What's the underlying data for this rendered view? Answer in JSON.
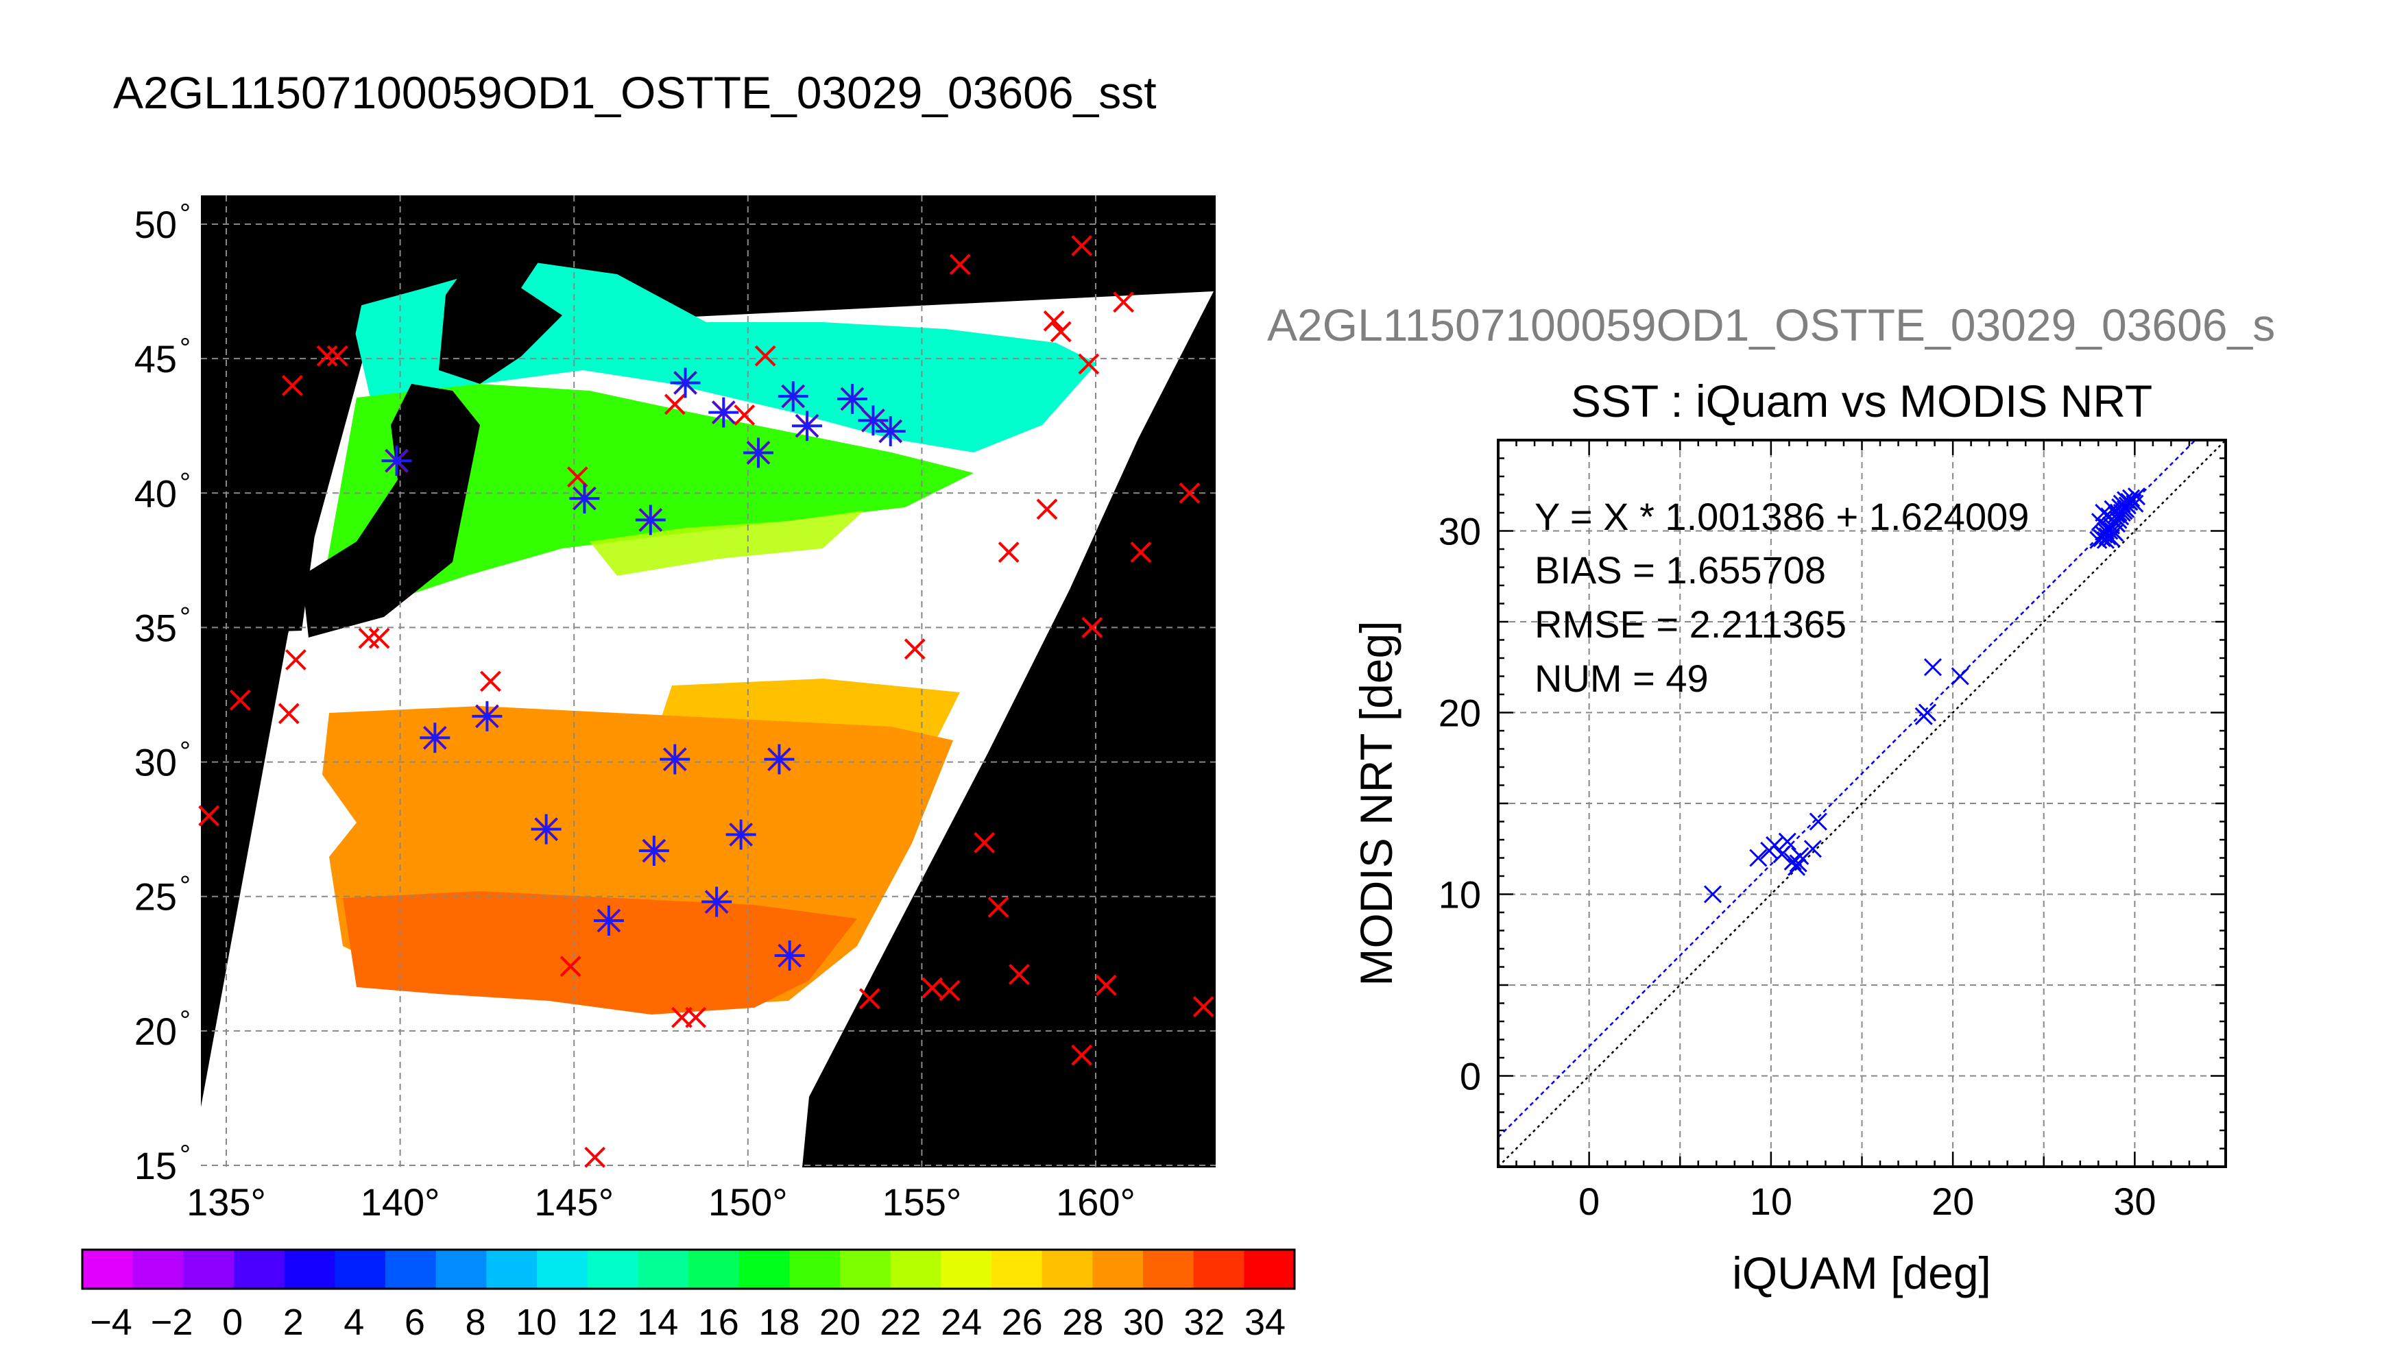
{
  "map_panel": {
    "title": "A2GL11507100059OD1_OSTTE_03029_03606_sst",
    "lat_ticks": [
      15,
      20,
      25,
      30,
      35,
      40,
      45,
      50
    ],
    "lon_ticks": [
      135,
      140,
      145,
      150,
      155,
      160
    ],
    "degree_symbol": "°",
    "iquam_points": [
      [
        134.5,
        28
      ],
      [
        135.4,
        32.3
      ],
      [
        137,
        33.8
      ],
      [
        136.8,
        31.8
      ],
      [
        136.9,
        44
      ],
      [
        137.9,
        45.1
      ],
      [
        138.2,
        45.1
      ],
      [
        139.1,
        34.6
      ],
      [
        139.4,
        34.6
      ],
      [
        142.6,
        33
      ],
      [
        144.9,
        22.4
      ],
      [
        145.1,
        40.6
      ],
      [
        145.6,
        15.3
      ],
      [
        147.9,
        43.3
      ],
      [
        148.1,
        20.5
      ],
      [
        148.5,
        20.5
      ],
      [
        149.9,
        42.9
      ],
      [
        150.5,
        45.1
      ],
      [
        153.5,
        21.2
      ],
      [
        154.8,
        34.2
      ],
      [
        155.3,
        21.6
      ],
      [
        155.8,
        21.5
      ],
      [
        156.1,
        48.5
      ],
      [
        156.8,
        27
      ],
      [
        157.2,
        24.6
      ],
      [
        157.5,
        37.8
      ],
      [
        157.8,
        22.1
      ],
      [
        158.6,
        39.4
      ],
      [
        158.8,
        46.4
      ],
      [
        159,
        46
      ],
      [
        159.6,
        49.2
      ],
      [
        159.6,
        19.1
      ],
      [
        159.8,
        44.8
      ],
      [
        159.9,
        35
      ],
      [
        160.3,
        21.7
      ],
      [
        160.8,
        47.1
      ],
      [
        161.3,
        37.8
      ],
      [
        162.7,
        40
      ],
      [
        163.1,
        20.9
      ]
    ],
    "matchup_points": [
      [
        139.9,
        41.2
      ],
      [
        141,
        30.9
      ],
      [
        142.5,
        31.7
      ],
      [
        144.2,
        27.5
      ],
      [
        145.3,
        39.8
      ],
      [
        146,
        24.1
      ],
      [
        147.2,
        39
      ],
      [
        147.3,
        26.7
      ],
      [
        147.9,
        30.1
      ],
      [
        148.2,
        44.1
      ],
      [
        149.1,
        24.8
      ],
      [
        149.3,
        43
      ],
      [
        149.8,
        27.3
      ],
      [
        150.3,
        41.5
      ],
      [
        150.9,
        30.1
      ],
      [
        151.2,
        22.8
      ],
      [
        151.3,
        43.6
      ],
      [
        151.7,
        42.5
      ],
      [
        153,
        43.5
      ],
      [
        153.6,
        42.7
      ],
      [
        154.1,
        42.3
      ]
    ],
    "colors": {
      "land_nodata": "#000000",
      "iquam_marker": "#ff0000",
      "matchup_marker": "#1a1aff"
    }
  },
  "colorbar": {
    "tick_labels": [
      "−4",
      "−2",
      "0",
      "2",
      "4",
      "6",
      "8",
      "10",
      "12",
      "14",
      "16",
      "18",
      "20",
      "22",
      "24",
      "26",
      "28",
      "30",
      "32",
      "34"
    ],
    "colors": [
      "#e100ff",
      "#b700ff",
      "#8d00ff",
      "#4b00ff",
      "#1500ff",
      "#0020ff",
      "#0058ff",
      "#008cff",
      "#00bfff",
      "#00e8f0",
      "#00ffc8",
      "#00ff96",
      "#00ff5a",
      "#00ff1a",
      "#3cff00",
      "#7dff00",
      "#b4ff00",
      "#e6ff00",
      "#ffe600",
      "#ffc000",
      "#ff9400",
      "#ff6400",
      "#ff3200",
      "#ff0000"
    ]
  },
  "scatter_panel": {
    "overlap_title": "A2GL11507100059OD1_OSTTE_03029_03606_s",
    "title": "SST : iQuam vs MODIS NRT",
    "regression_label": "Y = X * 1.001386 + 1.624009",
    "bias_label": "BIAS = 1.655708",
    "rmse_label": "RMSE = 2.211365",
    "num_label": "NUM = 49"
  },
  "chart_data": {
    "type": "scatter",
    "title": "SST : iQuam vs MODIS NRT",
    "xlabel": "iQUAM [deg]",
    "ylabel": "MODIS NRT [deg]",
    "xlim": [
      -5,
      35
    ],
    "ylim": [
      -5,
      35
    ],
    "xticks": [
      0,
      10,
      20,
      30
    ],
    "yticks": [
      0,
      10,
      20,
      30
    ],
    "grid": true,
    "regression": {
      "slope": 1.001386,
      "intercept": 1.624009
    },
    "identity_line": true,
    "marker_color": "#0000ff",
    "x": [
      6.8,
      9.3,
      9.9,
      10.2,
      10.6,
      10.9,
      11.2,
      11.4,
      11.5,
      11.6,
      12.3,
      12.6,
      18.4,
      18.6,
      18.9,
      20.4,
      28.0,
      28.1,
      28.2,
      28.3,
      28.3,
      28.4,
      28.4,
      28.5,
      28.5,
      28.6,
      28.6,
      28.7,
      28.7,
      28.8,
      28.8,
      28.9,
      28.9,
      29.0,
      29.0,
      29.1,
      29.1,
      29.2,
      29.2,
      29.3,
      29.3,
      29.4,
      29.5,
      29.5,
      29.6,
      29.7,
      29.8,
      30.0,
      30.1
    ],
    "y": [
      10.0,
      12.0,
      12.4,
      12.7,
      12.2,
      12.9,
      11.8,
      11.5,
      11.7,
      12.1,
      12.5,
      14.0,
      19.8,
      20.0,
      22.5,
      22.0,
      29.5,
      30.5,
      29.6,
      31.0,
      29.8,
      30.0,
      29.5,
      30.2,
      29.7,
      30.0,
      30.8,
      29.6,
      30.3,
      30.0,
      31.2,
      30.5,
      29.9,
      30.4,
      30.9,
      31.0,
      30.6,
      31.3,
      30.8,
      31.0,
      31.5,
      31.1,
      31.2,
      31.7,
      31.4,
      31.6,
      31.8,
      31.5,
      31.9
    ]
  }
}
